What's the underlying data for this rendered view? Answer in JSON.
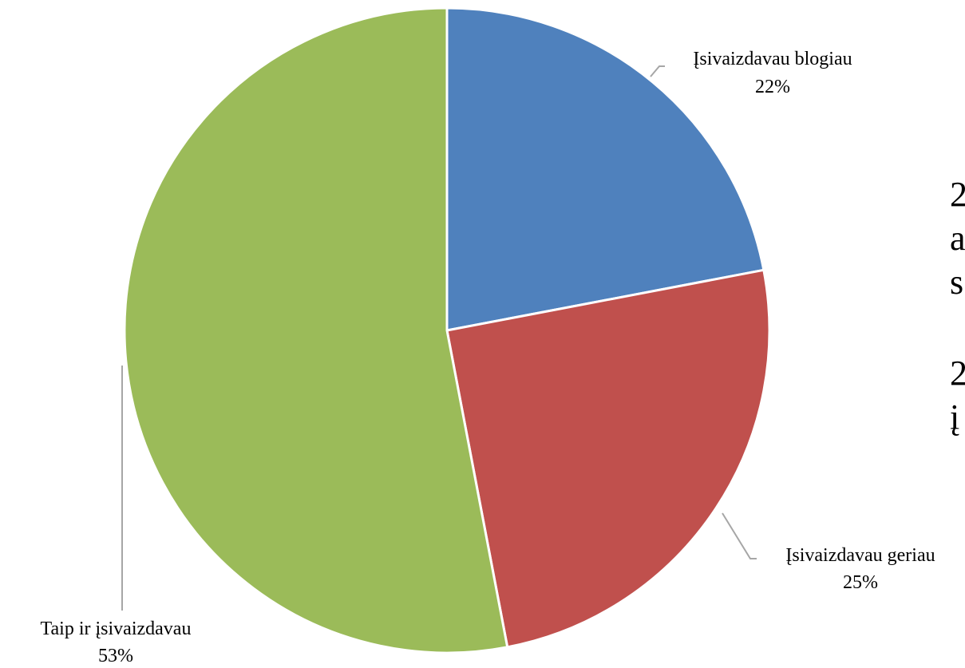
{
  "chart_data": {
    "type": "pie",
    "slices": [
      {
        "label": "Įsivaizdavau blogiau",
        "value": 22,
        "value_label": "22%",
        "color": "#4f81bd"
      },
      {
        "label": "Įsivaizdavau geriau",
        "value": 25,
        "value_label": "25%",
        "color": "#c0504d"
      },
      {
        "label": "Taip ir įsivaizdavau",
        "value": 53,
        "value_label": "53%",
        "color": "#9bbb59"
      }
    ],
    "data_labels": "outside with leader lines",
    "legend": "none"
  },
  "side_text": [
    "2",
    "a",
    "s",
    "2",
    "į"
  ]
}
